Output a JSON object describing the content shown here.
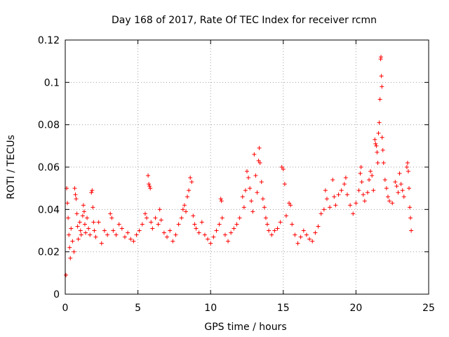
{
  "chart_data": {
    "type": "scatter",
    "title": "Day 168 of 2017, Rate Of TEC Index for receiver rcmn",
    "xlabel": "GPS time / hours",
    "ylabel": "ROTI / TECUs",
    "xlim": [
      0,
      25
    ],
    "ylim": [
      0,
      0.12
    ],
    "xticks": [
      0,
      5,
      10,
      15,
      20,
      25
    ],
    "xtick_labels": [
      "0",
      "5",
      "10",
      "15",
      "20",
      "25"
    ],
    "yticks": [
      0,
      0.02,
      0.04,
      0.06,
      0.08,
      0.1,
      0.12
    ],
    "ytick_labels": [
      "0",
      "0.02",
      "0.04",
      "0.06",
      "0.08",
      "0.1",
      "0.12"
    ],
    "grid": true,
    "marker": "+",
    "series": [
      {
        "color": "#ff0000",
        "points": [
          [
            0.05,
            0.009
          ],
          [
            0.1,
            0.05
          ],
          [
            0.15,
            0.043
          ],
          [
            0.2,
            0.036
          ],
          [
            0.25,
            0.028
          ],
          [
            0.3,
            0.022
          ],
          [
            0.35,
            0.017
          ],
          [
            0.4,
            0.031
          ],
          [
            0.5,
            0.025
          ],
          [
            0.6,
            0.02
          ],
          [
            0.65,
            0.05
          ],
          [
            0.7,
            0.047
          ],
          [
            0.75,
            0.045
          ],
          [
            0.8,
            0.038
          ],
          [
            0.85,
            0.032
          ],
          [
            0.9,
            0.026
          ],
          [
            1.0,
            0.034
          ],
          [
            1.05,
            0.03
          ],
          [
            1.1,
            0.028
          ],
          [
            1.2,
            0.037
          ],
          [
            1.25,
            0.042
          ],
          [
            1.3,
            0.039
          ],
          [
            1.35,
            0.033
          ],
          [
            1.4,
            0.029
          ],
          [
            1.5,
            0.036
          ],
          [
            1.6,
            0.031
          ],
          [
            1.7,
            0.028
          ],
          [
            1.8,
            0.048
          ],
          [
            1.85,
            0.049
          ],
          [
            1.9,
            0.041
          ],
          [
            1.95,
            0.034
          ],
          [
            2.0,
            0.03
          ],
          [
            2.1,
            0.027
          ],
          [
            2.3,
            0.034
          ],
          [
            2.5,
            0.024
          ],
          [
            2.7,
            0.03
          ],
          [
            2.9,
            0.028
          ],
          [
            3.1,
            0.038
          ],
          [
            3.2,
            0.036
          ],
          [
            3.3,
            0.03
          ],
          [
            3.5,
            0.028
          ],
          [
            3.7,
            0.033
          ],
          [
            3.9,
            0.031
          ],
          [
            4.1,
            0.027
          ],
          [
            4.3,
            0.029
          ],
          [
            4.5,
            0.026
          ],
          [
            4.7,
            0.025
          ],
          [
            4.9,
            0.028
          ],
          [
            5.1,
            0.03
          ],
          [
            5.3,
            0.033
          ],
          [
            5.5,
            0.038
          ],
          [
            5.6,
            0.036
          ],
          [
            5.7,
            0.056
          ],
          [
            5.75,
            0.052
          ],
          [
            5.8,
            0.051
          ],
          [
            5.85,
            0.05
          ],
          [
            5.9,
            0.034
          ],
          [
            6.0,
            0.031
          ],
          [
            6.2,
            0.036
          ],
          [
            6.4,
            0.033
          ],
          [
            6.5,
            0.04
          ],
          [
            6.6,
            0.035
          ],
          [
            6.8,
            0.029
          ],
          [
            7.0,
            0.027
          ],
          [
            7.2,
            0.03
          ],
          [
            7.4,
            0.025
          ],
          [
            7.6,
            0.028
          ],
          [
            7.8,
            0.033
          ],
          [
            8.0,
            0.036
          ],
          [
            8.1,
            0.04
          ],
          [
            8.2,
            0.042
          ],
          [
            8.3,
            0.039
          ],
          [
            8.4,
            0.046
          ],
          [
            8.5,
            0.049
          ],
          [
            8.6,
            0.055
          ],
          [
            8.7,
            0.053
          ],
          [
            8.8,
            0.037
          ],
          [
            8.9,
            0.033
          ],
          [
            9.0,
            0.031
          ],
          [
            9.2,
            0.029
          ],
          [
            9.4,
            0.034
          ],
          [
            9.6,
            0.028
          ],
          [
            9.8,
            0.026
          ],
          [
            10.0,
            0.024
          ],
          [
            10.2,
            0.027
          ],
          [
            10.4,
            0.03
          ],
          [
            10.6,
            0.033
          ],
          [
            10.7,
            0.045
          ],
          [
            10.75,
            0.044
          ],
          [
            10.8,
            0.036
          ],
          [
            11.0,
            0.028
          ],
          [
            11.2,
            0.025
          ],
          [
            11.4,
            0.029
          ],
          [
            11.6,
            0.031
          ],
          [
            11.8,
            0.033
          ],
          [
            12.0,
            0.036
          ],
          [
            12.2,
            0.046
          ],
          [
            12.3,
            0.041
          ],
          [
            12.4,
            0.049
          ],
          [
            12.5,
            0.058
          ],
          [
            12.6,
            0.055
          ],
          [
            12.7,
            0.05
          ],
          [
            12.8,
            0.044
          ],
          [
            12.9,
            0.039
          ],
          [
            13.0,
            0.066
          ],
          [
            13.1,
            0.056
          ],
          [
            13.2,
            0.048
          ],
          [
            13.3,
            0.063
          ],
          [
            13.35,
            0.069
          ],
          [
            13.4,
            0.062
          ],
          [
            13.5,
            0.053
          ],
          [
            13.6,
            0.045
          ],
          [
            13.7,
            0.041
          ],
          [
            13.8,
            0.036
          ],
          [
            13.9,
            0.033
          ],
          [
            14.0,
            0.03
          ],
          [
            14.2,
            0.028
          ],
          [
            14.4,
            0.03
          ],
          [
            14.6,
            0.031
          ],
          [
            14.8,
            0.034
          ],
          [
            14.9,
            0.06
          ],
          [
            15.0,
            0.059
          ],
          [
            15.1,
            0.052
          ],
          [
            15.2,
            0.037
          ],
          [
            15.4,
            0.043
          ],
          [
            15.5,
            0.042
          ],
          [
            15.6,
            0.033
          ],
          [
            15.8,
            0.028
          ],
          [
            16.0,
            0.024
          ],
          [
            16.2,
            0.027
          ],
          [
            16.4,
            0.03
          ],
          [
            16.6,
            0.028
          ],
          [
            16.8,
            0.026
          ],
          [
            17.0,
            0.025
          ],
          [
            17.2,
            0.029
          ],
          [
            17.4,
            0.032
          ],
          [
            17.6,
            0.038
          ],
          [
            17.8,
            0.04
          ],
          [
            17.9,
            0.049
          ],
          [
            18.0,
            0.045
          ],
          [
            18.2,
            0.041
          ],
          [
            18.4,
            0.054
          ],
          [
            18.5,
            0.046
          ],
          [
            18.6,
            0.042
          ],
          [
            18.8,
            0.047
          ],
          [
            19.0,
            0.049
          ],
          [
            19.2,
            0.052
          ],
          [
            19.3,
            0.055
          ],
          [
            19.4,
            0.047
          ],
          [
            19.6,
            0.042
          ],
          [
            19.8,
            0.038
          ],
          [
            20.0,
            0.043
          ],
          [
            20.2,
            0.049
          ],
          [
            20.3,
            0.057
          ],
          [
            20.35,
            0.06
          ],
          [
            20.4,
            0.053
          ],
          [
            20.5,
            0.047
          ],
          [
            20.6,
            0.044
          ],
          [
            20.8,
            0.048
          ],
          [
            20.9,
            0.054
          ],
          [
            21.0,
            0.058
          ],
          [
            21.1,
            0.056
          ],
          [
            21.2,
            0.049
          ],
          [
            21.3,
            0.073
          ],
          [
            21.35,
            0.071
          ],
          [
            21.4,
            0.07
          ],
          [
            21.45,
            0.067
          ],
          [
            21.5,
            0.062
          ],
          [
            21.55,
            0.076
          ],
          [
            21.6,
            0.081
          ],
          [
            21.65,
            0.092
          ],
          [
            21.7,
            0.111
          ],
          [
            21.72,
            0.112
          ],
          [
            21.75,
            0.103
          ],
          [
            21.78,
            0.098
          ],
          [
            21.8,
            0.074
          ],
          [
            21.85,
            0.068
          ],
          [
            21.9,
            0.062
          ],
          [
            22.0,
            0.054
          ],
          [
            22.1,
            0.05
          ],
          [
            22.2,
            0.046
          ],
          [
            22.3,
            0.044
          ],
          [
            22.5,
            0.043
          ],
          [
            22.7,
            0.053
          ],
          [
            22.8,
            0.051
          ],
          [
            22.9,
            0.048
          ],
          [
            23.0,
            0.057
          ],
          [
            23.1,
            0.052
          ],
          [
            23.2,
            0.049
          ],
          [
            23.3,
            0.046
          ],
          [
            23.5,
            0.06
          ],
          [
            23.55,
            0.062
          ],
          [
            23.6,
            0.058
          ],
          [
            23.65,
            0.05
          ],
          [
            23.7,
            0.041
          ],
          [
            23.75,
            0.036
          ],
          [
            23.8,
            0.03
          ]
        ]
      }
    ]
  }
}
